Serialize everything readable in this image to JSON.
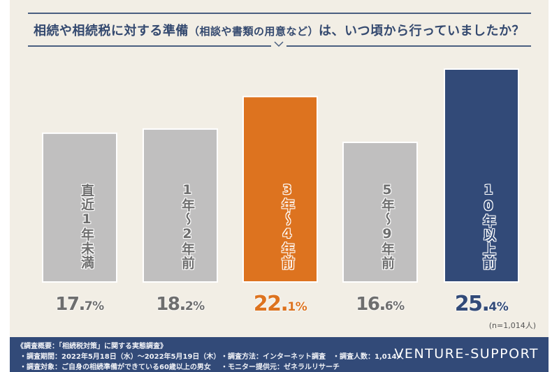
{
  "header": {
    "title_main": "相続や相続税に対する準備",
    "title_paren": "（相談や書類の用意など）",
    "title_tail": "は、いつ頃から行っていましたか？",
    "chevron_icon": "chevron-down-icon"
  },
  "colors": {
    "background": "#f2eee5",
    "gray_bar": "#c0bfbf",
    "gray_text": "#6e6e6e",
    "orange": "#dd731f",
    "navy": "#324a78",
    "rule": "#4a5f80"
  },
  "chart_data": {
    "type": "bar",
    "title": "相続や相続税に対する準備（相談や書類の用意など）は、いつ頃から行っていましたか？",
    "categories": [
      "直近1年未満",
      "1年〜2年前",
      "3年〜4年前",
      "5年〜9年前",
      "10年以上前"
    ],
    "values": [
      17.7,
      18.2,
      22.1,
      16.6,
      25.4
    ],
    "value_labels": [
      {
        "int": "17.",
        "dec": "7%"
      },
      {
        "int": "18.",
        "dec": "2%"
      },
      {
        "int": "22.",
        "dec": "1%"
      },
      {
        "int": "16.",
        "dec": "6%"
      },
      {
        "int": "25.",
        "dec": "4%"
      }
    ],
    "bar_colors": [
      "#c0bfbf",
      "#c0bfbf",
      "#dd731f",
      "#c0bfbf",
      "#324a78"
    ],
    "label_colors": [
      "#6e6e6e",
      "#6e6e6e",
      "#dd731f",
      "#6e6e6e",
      "#324a78"
    ],
    "unit": "%",
    "ylim": [
      0,
      25.4
    ],
    "grid": false,
    "note": "(n=1,014人)"
  },
  "footer": {
    "line1": "《調査概要：「相続税対策」に関する実態調査》",
    "period": "・調査期間：2022年5月18日（水）〜2022年5月19日（木）",
    "method": "・調査方法：インターネット調査",
    "count": "・調査人数：1,014人",
    "target": "・調査対象：ご自身の相続準備ができている60歳以上の男女",
    "provider": "・モニター提供元：ゼネラルリサーチ",
    "brand": "VENTURE-SUPPORT"
  }
}
